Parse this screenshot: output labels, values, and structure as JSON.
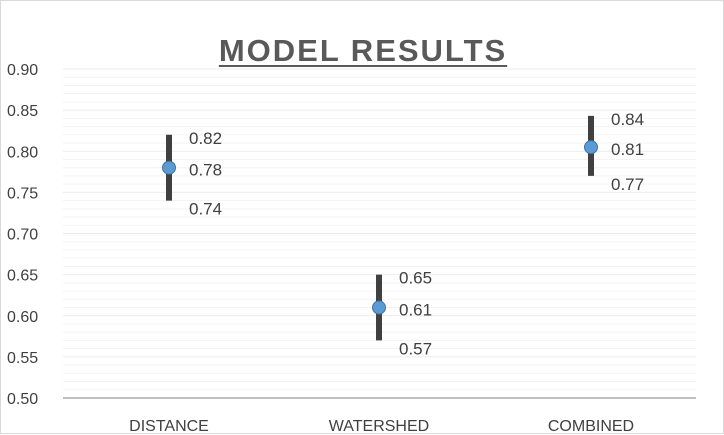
{
  "chart_data": {
    "type": "scatter",
    "title": "MODEL RESULTS",
    "categories": [
      "DISTANCE",
      "WATERSHED",
      "COMBINED"
    ],
    "series": [
      {
        "mean": 0.78,
        "upper": 0.82,
        "lower": 0.74,
        "mean_label": "0.78",
        "upper_label": "0.82",
        "lower_label": "0.74"
      },
      {
        "mean": 0.61,
        "upper": 0.65,
        "lower": 0.57,
        "mean_label": "0.61",
        "upper_label": "0.65",
        "lower_label": "0.57"
      },
      {
        "mean": 0.805,
        "upper": 0.843,
        "lower": 0.77,
        "mean_label": "0.81",
        "upper_label": "0.84",
        "lower_label": "0.77"
      }
    ],
    "ylim": [
      0.5,
      0.9
    ],
    "yticks": [
      "0.50",
      "0.55",
      "0.60",
      "0.65",
      "0.70",
      "0.75",
      "0.80",
      "0.85",
      "0.90"
    ],
    "grid": true,
    "colors": {
      "marker": "#5b9bd5",
      "marker_edge": "#41719c",
      "error_bar": "#404040",
      "grid": "#ebebeb",
      "axis": "#bfbfbf",
      "title": "#595959"
    }
  }
}
